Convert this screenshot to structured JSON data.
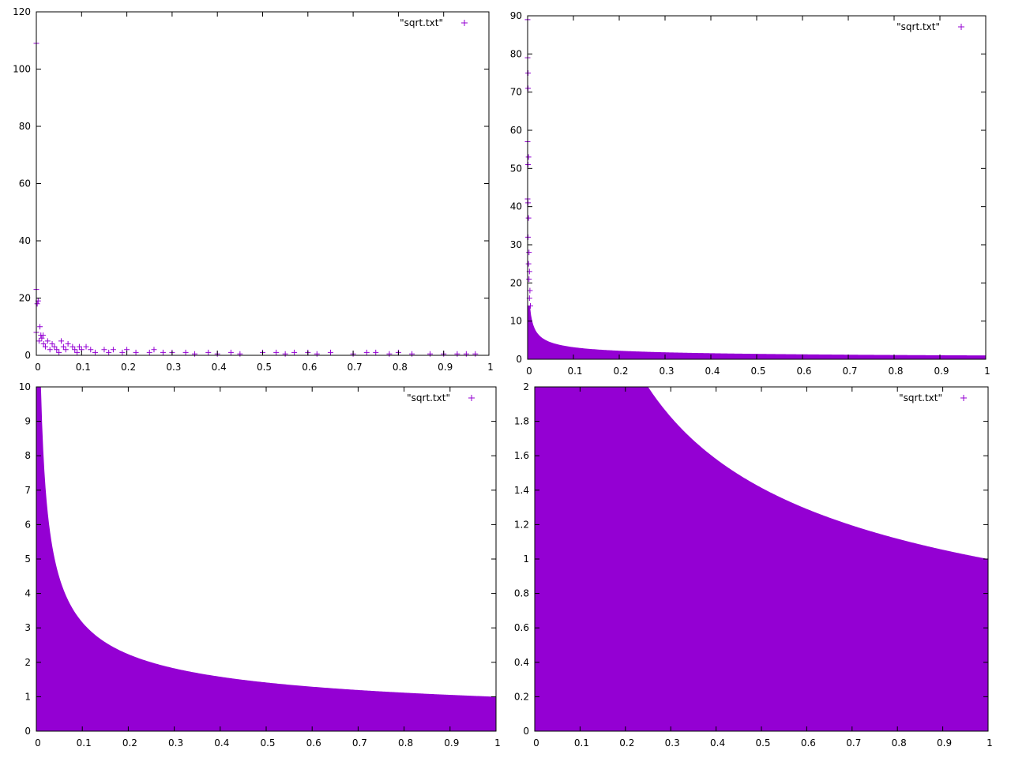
{
  "chart_data": [
    {
      "type": "scatter",
      "xlim": [
        0,
        1
      ],
      "ylim": [
        0,
        120
      ],
      "xticks": [
        "0",
        "0.1",
        "0.2",
        "0.3",
        "0.4",
        "0.5",
        "0.6",
        "0.7",
        "0.8",
        "0.9",
        "1"
      ],
      "yticks": [
        "0",
        "20",
        "40",
        "60",
        "80",
        "100",
        "120"
      ],
      "grid": false,
      "legend_position": "top-right",
      "series": [
        {
          "name": "\"sqrt.txt\"",
          "color": "#9400D3",
          "marker": "plus",
          "points": [
            [
              0.0,
              109
            ],
            [
              0.0,
              23
            ],
            [
              0.002,
              18
            ],
            [
              0.004,
              19
            ],
            [
              0.0,
              8
            ],
            [
              0.008,
              10
            ],
            [
              0.01,
              7
            ],
            [
              0.006,
              5
            ],
            [
              0.012,
              6
            ],
            [
              0.016,
              4
            ],
            [
              0.02,
              3
            ],
            [
              0.015,
              7
            ],
            [
              0.025,
              5
            ],
            [
              0.03,
              2
            ],
            [
              0.035,
              4
            ],
            [
              0.04,
              3
            ],
            [
              0.045,
              2
            ],
            [
              0.05,
              1
            ],
            [
              0.055,
              5
            ],
            [
              0.06,
              3
            ],
            [
              0.065,
              2
            ],
            [
              0.07,
              4
            ],
            [
              0.08,
              3
            ],
            [
              0.085,
              2
            ],
            [
              0.09,
              1
            ],
            [
              0.095,
              3
            ],
            [
              0.1,
              2
            ],
            [
              0.11,
              3
            ],
            [
              0.12,
              2
            ],
            [
              0.13,
              1
            ],
            [
              0.15,
              2
            ],
            [
              0.16,
              1
            ],
            [
              0.17,
              2
            ],
            [
              0.19,
              1
            ],
            [
              0.2,
              2
            ],
            [
              0.22,
              1
            ],
            [
              0.25,
              1
            ],
            [
              0.26,
              2
            ],
            [
              0.28,
              1
            ],
            [
              0.3,
              1
            ],
            [
              0.33,
              1
            ],
            [
              0.35,
              0.5
            ],
            [
              0.38,
              1
            ],
            [
              0.4,
              0.5
            ],
            [
              0.43,
              1
            ],
            [
              0.45,
              0.5
            ],
            [
              0.5,
              1
            ],
            [
              0.53,
              1
            ],
            [
              0.55,
              0.5
            ],
            [
              0.57,
              1
            ],
            [
              0.6,
              1
            ],
            [
              0.62,
              0.5
            ],
            [
              0.65,
              1
            ],
            [
              0.7,
              0.5
            ],
            [
              0.73,
              1
            ],
            [
              0.75,
              1
            ],
            [
              0.78,
              0.5
            ],
            [
              0.8,
              1
            ],
            [
              0.83,
              0.5
            ],
            [
              0.87,
              0.5
            ],
            [
              0.9,
              0.5
            ],
            [
              0.93,
              0.5
            ],
            [
              0.95,
              0.5
            ],
            [
              0.97,
              0.5
            ]
          ]
        }
      ]
    },
    {
      "type": "scatter",
      "xlim": [
        0,
        1
      ],
      "ylim": [
        0,
        90
      ],
      "xticks": [
        "0",
        "0.1",
        "0.2",
        "0.3",
        "0.4",
        "0.5",
        "0.6",
        "0.7",
        "0.8",
        "0.9",
        "1"
      ],
      "yticks": [
        "0",
        "10",
        "20",
        "30",
        "40",
        "50",
        "60",
        "70",
        "80",
        "90"
      ],
      "grid": false,
      "legend_position": "top-right",
      "series": [
        {
          "name": "\"sqrt.txt\"",
          "color": "#9400D3",
          "marker": "plus",
          "points": [
            [
              0.0,
              89
            ],
            [
              0.0,
              79
            ],
            [
              0.001,
              75
            ],
            [
              0.001,
              71
            ],
            [
              0.0,
              57
            ],
            [
              0.002,
              53
            ],
            [
              0.001,
              51
            ],
            [
              0.0,
              42
            ],
            [
              0.001,
              41
            ],
            [
              0.002,
              37
            ],
            [
              0.001,
              32
            ],
            [
              0.003,
              28
            ],
            [
              0.002,
              25
            ],
            [
              0.004,
              23
            ],
            [
              0.003,
              21
            ],
            [
              0.005,
              18
            ],
            [
              0.004,
              16
            ],
            [
              0.006,
              14
            ]
          ],
          "filled_region_upper": {
            "formula": "y = 1/sqrt(x)",
            "x_from": 0.0001,
            "x_to": 1,
            "y_clip": 14
          }
        }
      ]
    },
    {
      "type": "scatter",
      "xlim": [
        0,
        1
      ],
      "ylim": [
        0,
        10
      ],
      "xticks": [
        "0",
        "0.1",
        "0.2",
        "0.3",
        "0.4",
        "0.5",
        "0.6",
        "0.7",
        "0.8",
        "0.9",
        "1"
      ],
      "yticks": [
        "0",
        "1",
        "2",
        "3",
        "4",
        "5",
        "6",
        "7",
        "8",
        "9",
        "10"
      ],
      "grid": false,
      "legend_position": "top-right",
      "series": [
        {
          "name": "\"sqrt.txt\"",
          "color": "#9400D3",
          "marker": "plus",
          "filled_region_upper": {
            "formula": "y = 1/sqrt(x)",
            "x_from": 0,
            "x_to": 1,
            "y_clip": 10
          }
        }
      ]
    },
    {
      "type": "scatter",
      "xlim": [
        0,
        1
      ],
      "ylim": [
        0,
        2
      ],
      "xticks": [
        "0",
        "0.1",
        "0.2",
        "0.3",
        "0.4",
        "0.5",
        "0.6",
        "0.7",
        "0.8",
        "0.9",
        "1"
      ],
      "yticks": [
        "0",
        "0.2",
        "0.4",
        "0.6",
        "0.8",
        "1",
        "1.2",
        "1.4",
        "1.6",
        "1.8",
        "2"
      ],
      "grid": false,
      "legend_position": "top-right",
      "series": [
        {
          "name": "\"sqrt.txt\"",
          "color": "#9400D3",
          "marker": "plus",
          "filled_region_upper": {
            "formula": "y = 1/sqrt(x)",
            "x_from": 0,
            "x_to": 1,
            "y_clip": 2
          }
        }
      ]
    }
  ]
}
